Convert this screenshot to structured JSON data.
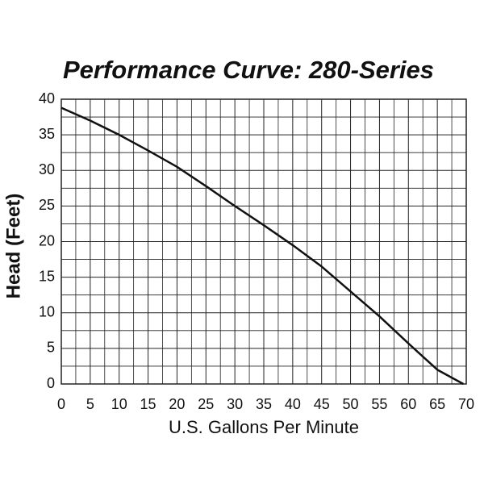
{
  "chart_data": {
    "type": "line",
    "title": "Performance Curve: 280-Series",
    "xlabel": "U.S. Gallons Per Minute",
    "ylabel": "Head (Feet)",
    "x": [
      0,
      5,
      10,
      15,
      20,
      25,
      30,
      35,
      40,
      45,
      50,
      55,
      60,
      65,
      69.5
    ],
    "series": [
      {
        "color": "#111111",
        "values": [
          38.8,
          37,
          35,
          32.8,
          30.5,
          27.8,
          25,
          22.3,
          19.5,
          16.5,
          13,
          9.5,
          5.7,
          2,
          0
        ]
      }
    ],
    "xlim": [
      0,
      70
    ],
    "ylim": [
      0,
      40
    ],
    "xticks": [
      0,
      5,
      10,
      15,
      20,
      25,
      30,
      35,
      40,
      45,
      50,
      55,
      60,
      65,
      70
    ],
    "yticks": [
      0,
      5,
      10,
      15,
      20,
      25,
      30,
      35,
      40
    ],
    "grid": true,
    "minor_grid": true
  }
}
